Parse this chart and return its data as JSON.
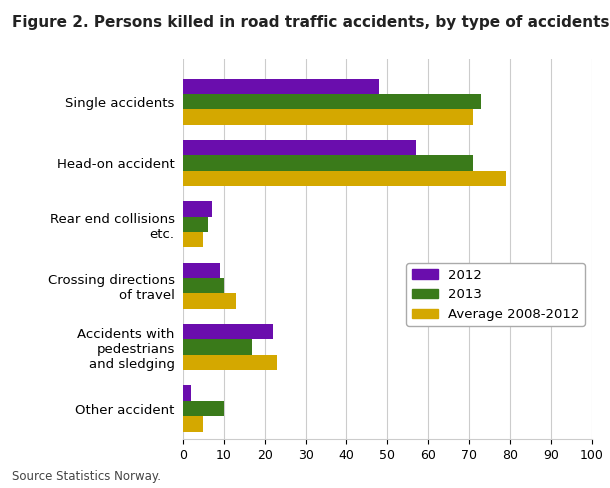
{
  "title": "Figure 2. Persons killed in road traffic accidents, by type of accidents",
  "categories": [
    "Single accidents",
    "Head-on accident",
    "Rear end collisions\netc.",
    "Crossing directions\nof travel",
    "Accidents with\npedestrians\nand sledging",
    "Other accident"
  ],
  "series": {
    "2012": [
      48,
      57,
      7,
      9,
      22,
      2
    ],
    "2013": [
      73,
      71,
      6,
      10,
      17,
      10
    ],
    "Average 2008-2012": [
      71,
      79,
      5,
      13,
      23,
      5
    ]
  },
  "colors": {
    "2012": "#6a0dad",
    "2013": "#3a7a1a",
    "Average 2008-2012": "#d4a800"
  },
  "xlim": [
    0,
    100
  ],
  "xticks": [
    0,
    10,
    20,
    30,
    40,
    50,
    60,
    70,
    80,
    90,
    100
  ],
  "source": "Source Statistics Norway.",
  "bar_height": 0.25,
  "background_color": "#ffffff",
  "grid_color": "#cccccc",
  "title_fontsize": 11,
  "label_fontsize": 9.5,
  "tick_fontsize": 9,
  "legend_fontsize": 9.5
}
